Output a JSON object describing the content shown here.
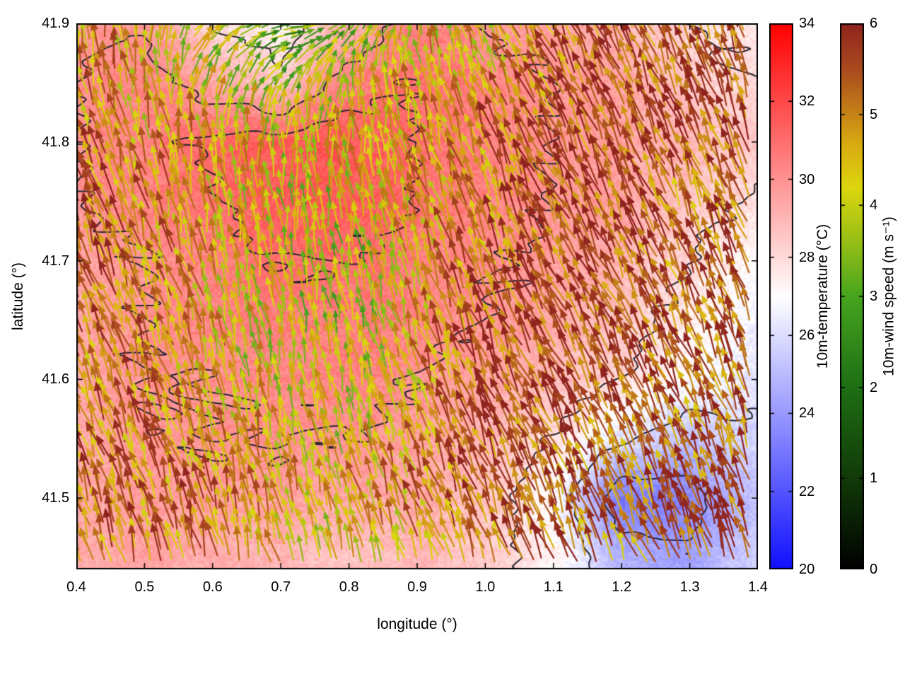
{
  "chart_data": {
    "type": "heatmap",
    "overlay": "wind-vector-field",
    "title": "",
    "xlabel": "longitude (°)",
    "ylabel": "latitude (°)",
    "x_range": [
      0.4,
      1.4
    ],
    "y_range": [
      41.44,
      41.9
    ],
    "x_ticks": [
      0.4,
      0.5,
      0.6,
      0.7,
      0.8,
      0.9,
      1.0,
      1.1,
      1.2,
      1.3,
      1.4
    ],
    "y_ticks": [
      41.5,
      41.6,
      41.7,
      41.8,
      41.9
    ],
    "grid": {
      "x": [
        0.4,
        0.5,
        0.6,
        0.7,
        0.8,
        0.9,
        1.0,
        1.1,
        1.2,
        1.3,
        1.4
      ],
      "y": [
        41.9,
        41.85,
        41.8,
        41.75,
        41.7,
        41.65,
        41.6,
        41.55,
        41.5,
        41.45
      ]
    },
    "temperature": {
      "label": "10m-temperature (°C)",
      "units": "°C",
      "range": [
        20,
        34
      ],
      "ticks": [
        20,
        22,
        24,
        26,
        28,
        30,
        32,
        34
      ],
      "palette": [
        [
          20,
          "#0f0fff"
        ],
        [
          27,
          "#ffffff"
        ],
        [
          34,
          "#ff0000"
        ]
      ],
      "values_grid": [
        [
          29.5,
          30.0,
          28.0,
          27.2,
          29.0,
          30.5,
          30.0,
          29.5,
          29.0,
          28.0,
          27.6
        ],
        [
          30.0,
          30.5,
          29.5,
          28.5,
          30.5,
          31.0,
          30.5,
          30.0,
          29.5,
          28.5,
          28.0
        ],
        [
          30.0,
          30.5,
          31.3,
          31.5,
          31.5,
          31.0,
          30.5,
          30.0,
          29.5,
          29.0,
          28.5
        ],
        [
          30.0,
          30.5,
          31.0,
          31.5,
          31.5,
          31.0,
          30.5,
          30.0,
          29.5,
          28.5,
          27.8
        ],
        [
          29.5,
          30.0,
          30.5,
          31.0,
          31.0,
          30.5,
          30.2,
          29.8,
          29.0,
          28.0,
          27.0
        ],
        [
          29.5,
          30.0,
          30.5,
          30.5,
          30.5,
          30.5,
          30.0,
          29.5,
          28.5,
          27.5,
          26.5
        ],
        [
          29.5,
          30.0,
          30.0,
          30.2,
          30.5,
          30.0,
          29.5,
          29.0,
          28.0,
          27.0,
          26.2
        ],
        [
          29.5,
          29.8,
          30.0,
          30.0,
          30.0,
          29.6,
          29.0,
          28.0,
          26.2,
          25.2,
          25.8
        ],
        [
          29.5,
          29.6,
          29.6,
          29.6,
          29.5,
          29.4,
          28.6,
          27.0,
          23.0,
          23.5,
          25.2
        ],
        [
          29.4,
          29.5,
          29.2,
          29.0,
          28.6,
          29.0,
          28.4,
          27.4,
          24.8,
          24.2,
          25.8
        ]
      ]
    },
    "contours": {
      "levels": [
        24,
        26,
        28,
        30,
        31
      ],
      "color": "#23242e"
    },
    "wind": {
      "label": "10m-wind speed (m s⁻¹)",
      "units": "m s⁻¹",
      "range": [
        0,
        6
      ],
      "ticks": [
        0,
        1,
        2,
        3,
        4,
        5,
        6
      ],
      "palette": [
        [
          0,
          "#000000"
        ],
        [
          1,
          "#113a08"
        ],
        [
          2,
          "#1e6e14"
        ],
        [
          3,
          "#46a41e"
        ],
        [
          3.6,
          "#96be16"
        ],
        [
          4.2,
          "#ddd60e"
        ],
        [
          4.7,
          "#d8a812"
        ],
        [
          5.1,
          "#c07818"
        ],
        [
          5.5,
          "#aa4a1e"
        ],
        [
          6,
          "#8f241e"
        ]
      ],
      "speed_grid": [
        [
          4.5,
          4.5,
          3.5,
          3.0,
          3.5,
          4.0,
          4.5,
          5.0,
          5.5,
          5.5,
          5.0
        ],
        [
          5.0,
          4.5,
          4.0,
          3.0,
          4.0,
          4.5,
          4.5,
          5.0,
          5.5,
          5.5,
          5.5
        ],
        [
          5.0,
          4.5,
          4.5,
          4.0,
          4.5,
          4.5,
          5.0,
          5.5,
          5.5,
          5.5,
          5.5
        ],
        [
          5.5,
          5.0,
          4.5,
          4.0,
          4.0,
          4.5,
          5.0,
          5.5,
          5.5,
          5.0,
          5.5
        ],
        [
          5.5,
          5.0,
          4.5,
          4.0,
          3.5,
          4.5,
          5.0,
          5.5,
          5.5,
          5.0,
          5.5
        ],
        [
          5.5,
          5.0,
          4.5,
          4.0,
          3.5,
          4.5,
          5.5,
          5.5,
          5.5,
          5.5,
          5.5
        ],
        [
          5.0,
          5.0,
          4.5,
          4.0,
          4.0,
          4.5,
          5.5,
          5.5,
          5.5,
          5.5,
          5.5
        ],
        [
          5.0,
          5.0,
          4.5,
          4.5,
          4.0,
          4.5,
          5.5,
          5.5,
          5.5,
          5.0,
          5.5
        ],
        [
          5.5,
          5.0,
          5.0,
          4.5,
          4.5,
          5.0,
          5.5,
          5.5,
          5.0,
          5.5,
          5.5
        ],
        [
          5.5,
          5.0,
          5.0,
          4.5,
          4.0,
          4.5,
          5.0,
          5.5,
          5.0,
          5.5,
          5.5
        ]
      ],
      "direction_deg_grid": [
        [
          100,
          90,
          30,
          0,
          40,
          90,
          110,
          115,
          115,
          110,
          105
        ],
        [
          105,
          100,
          70,
          50,
          80,
          100,
          110,
          115,
          115,
          110,
          110
        ],
        [
          110,
          105,
          95,
          90,
          95,
          105,
          110,
          115,
          115,
          110,
          110
        ],
        [
          110,
          105,
          100,
          95,
          100,
          105,
          110,
          115,
          115,
          112,
          110
        ],
        [
          110,
          108,
          102,
          98,
          100,
          105,
          112,
          115,
          115,
          112,
          110
        ],
        [
          112,
          108,
          104,
          100,
          100,
          108,
          112,
          115,
          115,
          112,
          112
        ],
        [
          112,
          108,
          104,
          100,
          102,
          108,
          112,
          115,
          115,
          112,
          112
        ],
        [
          110,
          108,
          105,
          102,
          104,
          108,
          112,
          115,
          112,
          112,
          110
        ],
        [
          110,
          108,
          105,
          104,
          105,
          110,
          112,
          112,
          110,
          112,
          110
        ],
        [
          108,
          106,
          105,
          104,
          105,
          108,
          110,
          112,
          110,
          110,
          108
        ]
      ],
      "arrow_spacing_px": 16,
      "seed": 1234
    }
  }
}
